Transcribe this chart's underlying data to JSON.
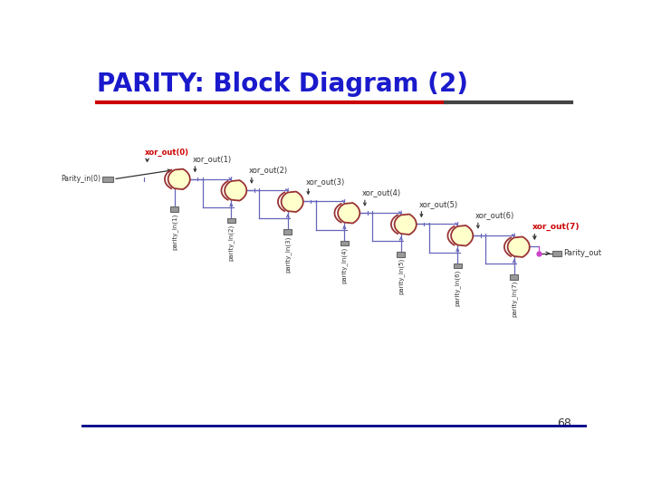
{
  "title": "PARITY: Block Diagram (2)",
  "title_color": "#1a1acc",
  "title_fontsize": 20,
  "background_color": "#ffffff",
  "red_line_color": "#cc0000",
  "dark_line_color": "#444444",
  "bottom_line_color": "#000088",
  "page_number": "68",
  "xor_gate_fill": "#ffffcc",
  "xor_gate_edge": "#993333",
  "wire_color": "#6666bb",
  "arrow_color": "#333333",
  "label_color_normal": "#333333",
  "label_color_red": "#cc0000",
  "input_box_fill": "#999999",
  "input_box_edge": "#666666",
  "input_labels": [
    "parity_In(1)",
    "parity_In(2)",
    "parity_In(3)",
    "parity_In(4)",
    "parity_In(5)",
    "parity_In(6)",
    "parity_In(7)"
  ],
  "xor_out_labels": [
    "xor_out(0)",
    "xor_out(1)",
    "xor_out(2)",
    "xor_out(3)",
    "xor_out(4)",
    "xor_out(5)",
    "xor_out(6)",
    "xor_out(7)"
  ],
  "xor_out_red": [
    0,
    7
  ],
  "parity_in0_label": "Parity_in(0)",
  "parity_out_label": "Parity_out",
  "purple_dot_color": "#cc44cc"
}
